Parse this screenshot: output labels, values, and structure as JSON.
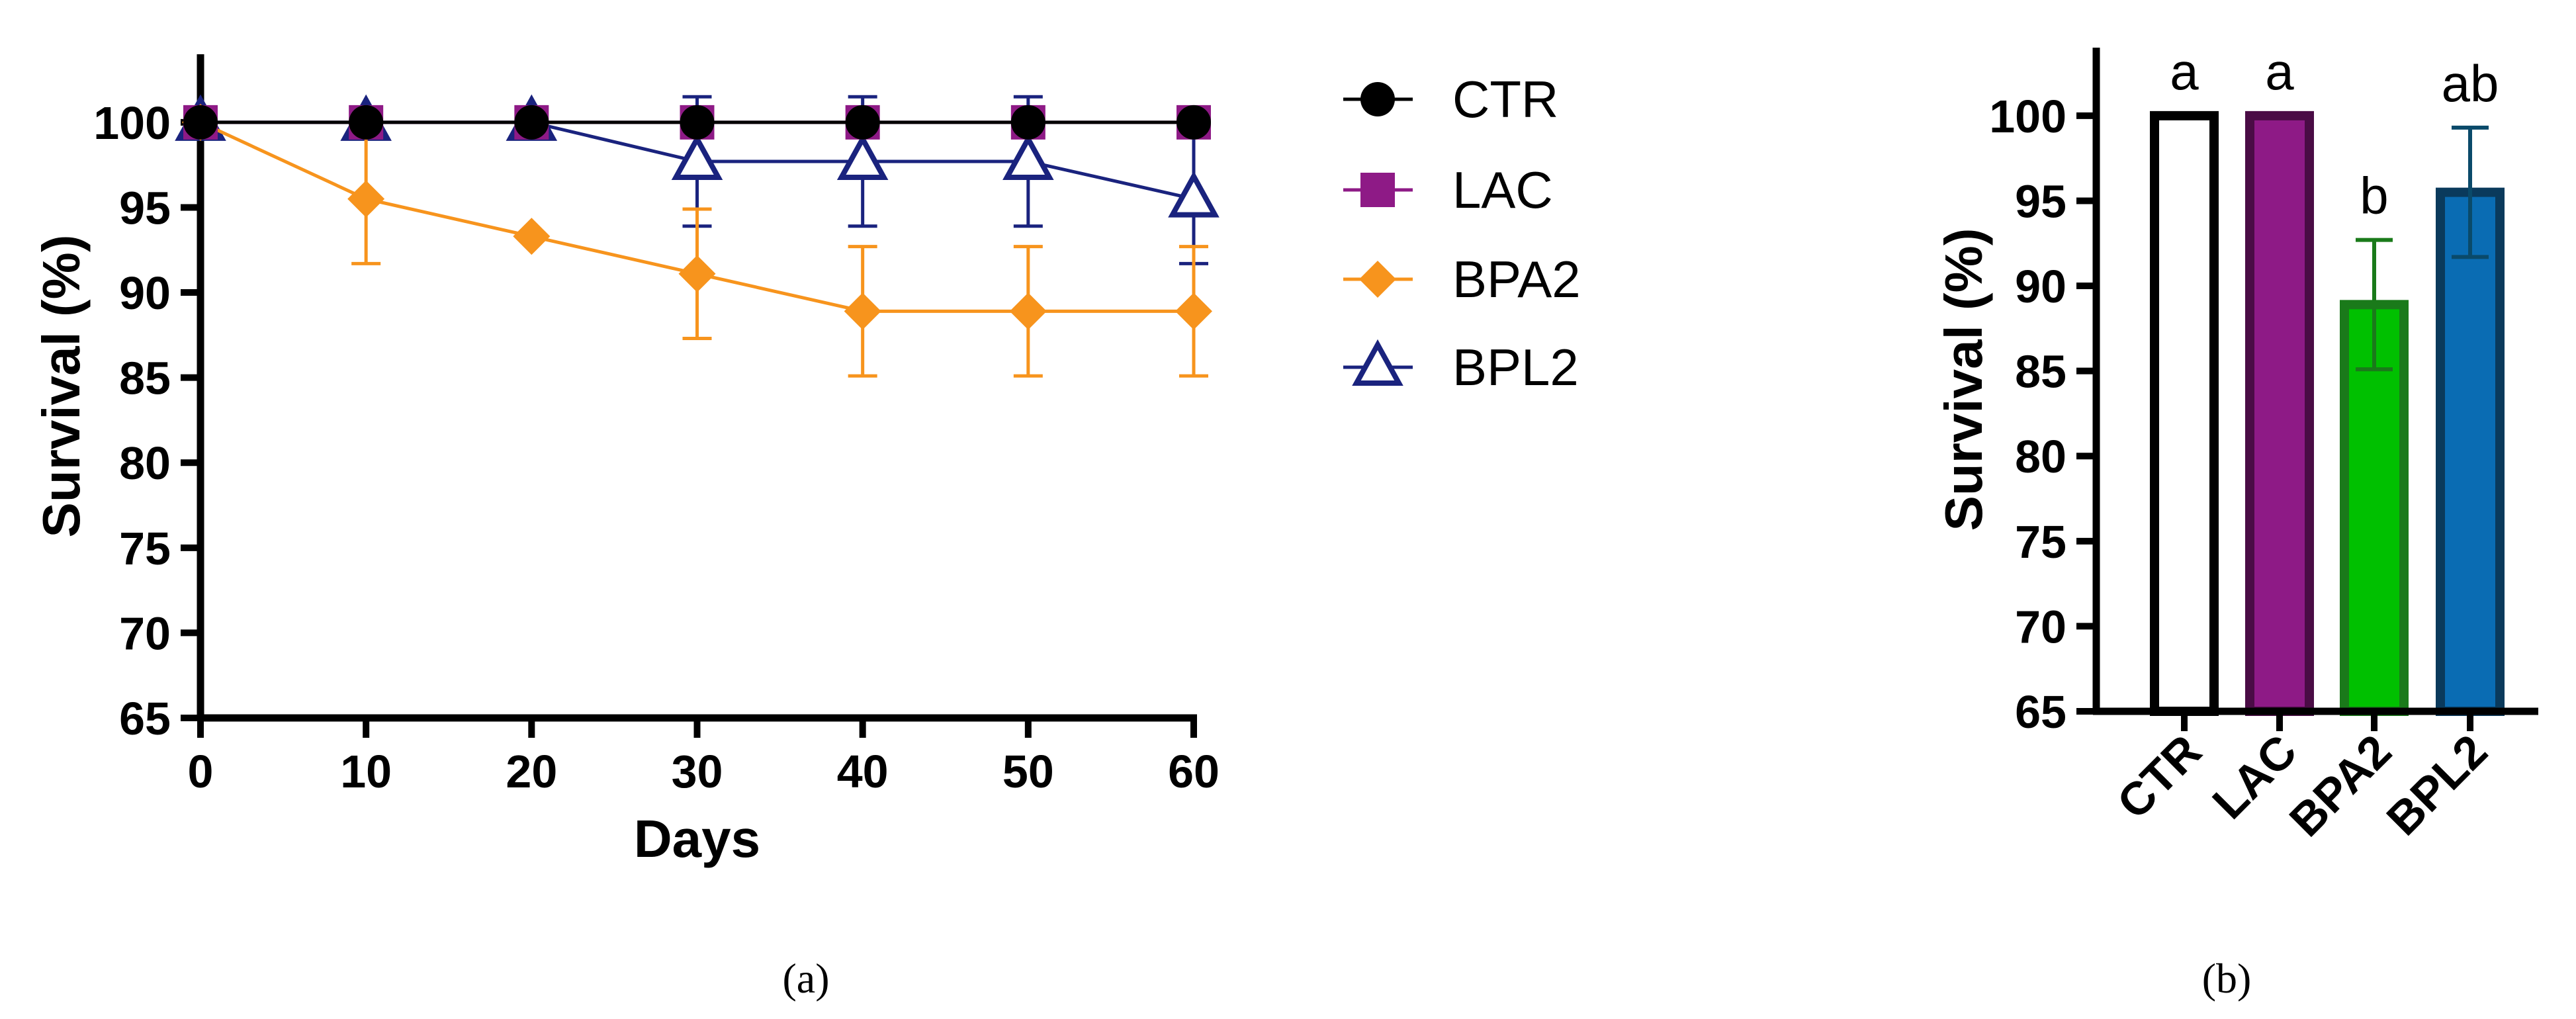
{
  "colors": {
    "CTR": "#000000",
    "LAC": "#8e1a86",
    "BPA2": "#f7941d",
    "BPL2": "#1a237e",
    "bar_CTR_fill": "#ffffff",
    "bar_CTR_edge": "#000000",
    "bar_LAC_fill": "#8e1a86",
    "bar_LAC_edge": "#4a0c45",
    "bar_BPA2_fill": "#00c000",
    "bar_BPA2_edge": "#1a7a1a",
    "bar_BPL2_fill": "#0a6cb3",
    "bar_BPL2_edge": "#0a3a5c",
    "errorbar_BPA2": "#1a7a1a",
    "errorbar_BPL2": "#0a4a6a"
  },
  "chart_data": [
    {
      "panel": "(a)",
      "type": "line",
      "title": "",
      "xlabel": "Days",
      "ylabel": "Survival (%)",
      "xlim": [
        0,
        60
      ],
      "ylim": [
        65,
        104
      ],
      "xticks": [
        0,
        10,
        20,
        30,
        40,
        50,
        60
      ],
      "yticks": [
        65,
        70,
        75,
        80,
        85,
        90,
        95,
        100
      ],
      "grid": false,
      "legend_position": "right",
      "x": [
        0,
        10,
        20,
        30,
        40,
        50,
        60
      ],
      "series": [
        {
          "name": "CTR",
          "marker": "circle",
          "values": [
            100,
            100,
            100,
            100,
            100,
            100,
            100
          ],
          "errors": [
            0,
            0,
            0,
            0,
            0,
            0,
            0
          ]
        },
        {
          "name": "LAC",
          "marker": "square",
          "values": [
            100,
            100,
            100,
            100,
            100,
            100,
            100
          ],
          "errors": [
            0,
            0,
            0,
            0,
            0,
            0,
            0
          ]
        },
        {
          "name": "BPA2",
          "marker": "diamond",
          "values": [
            100,
            95.5,
            93.3,
            91.1,
            88.9,
            88.9,
            88.9
          ],
          "errors": [
            0,
            3.8,
            0,
            3.8,
            3.8,
            3.8,
            3.8
          ]
        },
        {
          "name": "BPL2",
          "marker": "triangle-open",
          "values": [
            100,
            100,
            100,
            97.7,
            97.7,
            97.7,
            95.5
          ],
          "errors": [
            0,
            0,
            0,
            3.8,
            3.8,
            3.8,
            3.8
          ]
        }
      ]
    },
    {
      "panel": "(b)",
      "type": "bar",
      "title": "",
      "xlabel": "",
      "ylabel": "Survival (%)",
      "ylim": [
        65,
        104
      ],
      "yticks": [
        65,
        70,
        75,
        80,
        85,
        90,
        95,
        100
      ],
      "grid": false,
      "categories": [
        "CTR",
        "LAC",
        "BPA2",
        "BPL2"
      ],
      "values": [
        100,
        100,
        88.9,
        95.5
      ],
      "errors": [
        0,
        0,
        3.8,
        3.8
      ],
      "significance_letters": [
        "a",
        "a",
        "b",
        "ab"
      ]
    }
  ]
}
